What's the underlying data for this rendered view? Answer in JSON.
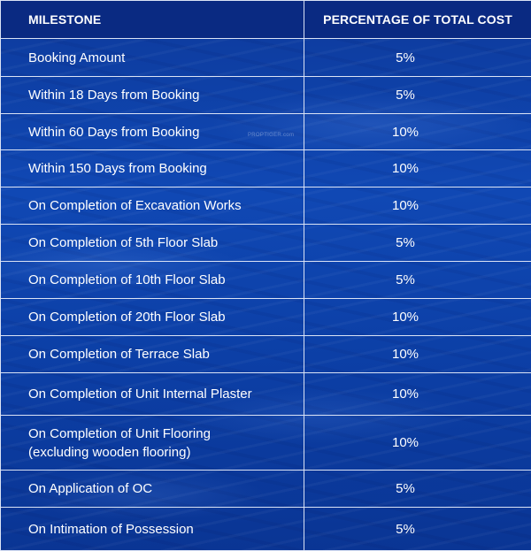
{
  "table": {
    "headers": {
      "milestone": "MILESTONE",
      "percent": "PERCENTAGE OF TOTAL COST"
    },
    "rows": [
      {
        "milestone": "Booking Amount",
        "percent": "5%"
      },
      {
        "milestone": "Within 18 Days from Booking",
        "percent": "5%"
      },
      {
        "milestone": "Within 60 Days from Booking",
        "percent": "10%"
      },
      {
        "milestone": "Within 150 Days from Booking",
        "percent": "10%"
      },
      {
        "milestone": "On Completion of Excavation Works",
        "percent": "10%"
      },
      {
        "milestone": "On Completion of 5th Floor Slab",
        "percent": "5%"
      },
      {
        "milestone": "On Completion of 10th Floor Slab",
        "percent": "5%"
      },
      {
        "milestone": "On Completion of 20th Floor Slab",
        "percent": "10%"
      },
      {
        "milestone": "On Completion of Terrace Slab",
        "percent": "10%"
      },
      {
        "milestone": "On Completion of Unit Internal Plaster",
        "percent": "10%"
      },
      {
        "milestone": "On Completion of Unit Flooring\n(excluding wooden flooring)",
        "percent": "10%"
      },
      {
        "milestone": "On Application of OC",
        "percent": "5%"
      },
      {
        "milestone": "On Intimation of Possession",
        "percent": "5%"
      }
    ]
  },
  "watermark": "PROPTIGER.com",
  "colors": {
    "background": "#1048b4",
    "header": "#0a2a82",
    "border": "#dbe3f5",
    "text": "#ffffff"
  }
}
